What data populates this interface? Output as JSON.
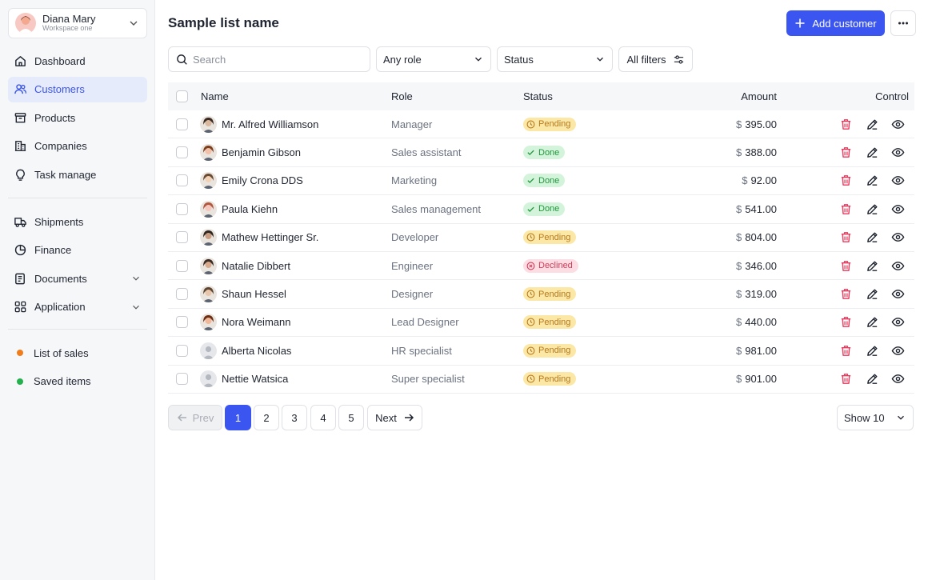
{
  "account": {
    "name": "Diana Mary",
    "workspace": "Workspace one"
  },
  "sidebar": {
    "group1": [
      {
        "label": "Dashboard",
        "icon": "home-icon"
      },
      {
        "label": "Customers",
        "icon": "users-icon",
        "active": true
      },
      {
        "label": "Products",
        "icon": "archive-icon"
      },
      {
        "label": "Companies",
        "icon": "building-icon"
      },
      {
        "label": "Task manage",
        "icon": "lightbulb-icon"
      }
    ],
    "group2": [
      {
        "label": "Shipments",
        "icon": "truck-icon"
      },
      {
        "label": "Finance",
        "icon": "pie-chart-icon"
      },
      {
        "label": "Documents",
        "icon": "document-icon",
        "expandable": true
      },
      {
        "label": "Application",
        "icon": "grid-icon",
        "expandable": true
      }
    ],
    "group3": [
      {
        "label": "List of sales",
        "dot_color": "#f07c1a"
      },
      {
        "label": "Saved items",
        "dot_color": "#22b14c"
      }
    ]
  },
  "header": {
    "title": "Sample list name",
    "add_label": "Add customer"
  },
  "toolbar": {
    "search_placeholder": "Search",
    "role_select": "Any role",
    "status_select": "Status",
    "filters_label": "All filters"
  },
  "table": {
    "columns": {
      "name": "Name",
      "role": "Role",
      "status": "Status",
      "amount": "Amount",
      "control": "Control"
    },
    "currency": "$",
    "rows": [
      {
        "name": "Mr. Alfred Williamson",
        "role": "Manager",
        "status": "Pending",
        "amount": "395.00"
      },
      {
        "name": "Benjamin Gibson",
        "role": "Sales assistant",
        "status": "Done",
        "amount": "388.00"
      },
      {
        "name": "Emily Crona DDS",
        "role": "Marketing",
        "status": "Done",
        "amount": "92.00"
      },
      {
        "name": "Paula Kiehn",
        "role": "Sales management",
        "status": "Done",
        "amount": "541.00"
      },
      {
        "name": "Mathew Hettinger Sr.",
        "role": "Developer",
        "status": "Pending",
        "amount": "804.00"
      },
      {
        "name": "Natalie Dibbert",
        "role": "Engineer",
        "status": "Declined",
        "amount": "346.00"
      },
      {
        "name": "Shaun Hessel",
        "role": "Designer",
        "status": "Pending",
        "amount": "319.00"
      },
      {
        "name": "Nora Weimann",
        "role": "Lead Designer",
        "status": "Pending",
        "amount": "440.00"
      },
      {
        "name": "Alberta Nicolas",
        "role": "HR specialist",
        "status": "Pending",
        "amount": "981.00"
      },
      {
        "name": "Nettie Watsica",
        "role": "Super specialist",
        "status": "Pending",
        "amount": "901.00"
      }
    ]
  },
  "pagination": {
    "prev": "Prev",
    "next": "Next",
    "pages": [
      "1",
      "2",
      "3",
      "4",
      "5"
    ],
    "current": "1",
    "show": "Show 10"
  },
  "colors": {
    "accent": "#3b55f0",
    "pending": "#b7791f",
    "done": "#23963f",
    "declined": "#d23a5a",
    "delete": "#e53a5c"
  }
}
